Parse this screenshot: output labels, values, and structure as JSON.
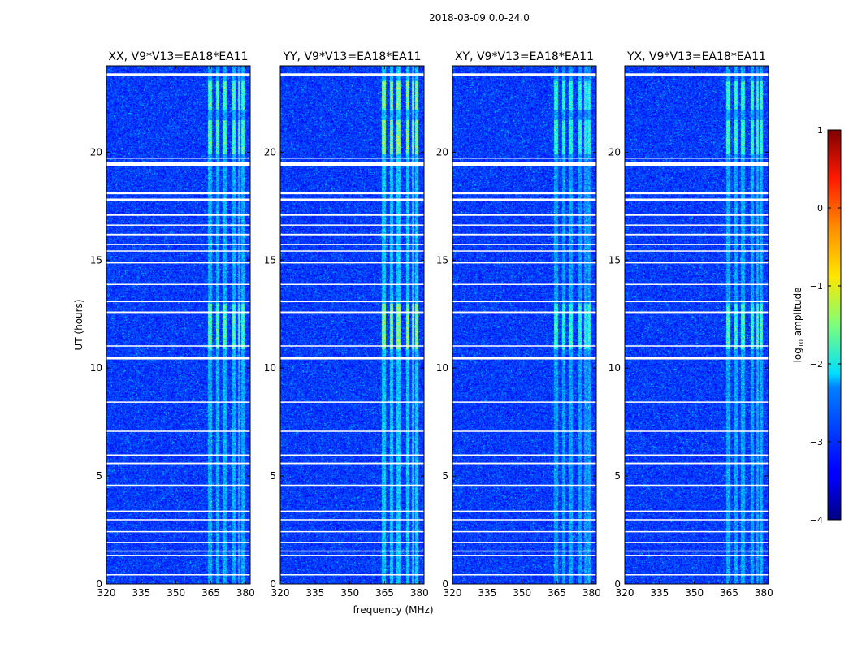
{
  "chart_data": {
    "type": "heatmap",
    "suptitle": "2018-03-09 0.0-24.0",
    "xlabel": "frequency (MHz)",
    "ylabel": "UT (hours)",
    "xlim": [
      320,
      382
    ],
    "ylim": [
      0,
      24
    ],
    "x_ticks": [
      320,
      335,
      350,
      365,
      380
    ],
    "y_ticks": [
      0,
      5,
      10,
      15,
      20
    ],
    "panels": [
      {
        "title": "XX, V9*V13=EA18*EA11",
        "rfi_strength": 0.8
      },
      {
        "title": "YY, V9*V13=EA18*EA11",
        "rfi_strength": 1.0
      },
      {
        "title": "XY, V9*V13=EA18*EA11",
        "rfi_strength": 0.7
      },
      {
        "title": "YX, V9*V13=EA18*EA11",
        "rfi_strength": 0.75
      }
    ],
    "colorbar": {
      "label": "log10 amplitude",
      "label_main": "log",
      "label_sub": "10",
      "label_rest": " amplitude",
      "min": -4,
      "max": 1,
      "ticks": [
        1,
        0,
        -1,
        -2,
        -3,
        -4
      ],
      "tick_labels": [
        "1",
        "0",
        "−1",
        "−2",
        "−3",
        "−4"
      ]
    },
    "flagged_hours": [
      [
        23.55,
        23.65
      ],
      [
        19.7,
        19.75
      ],
      [
        19.35,
        19.55
      ],
      [
        18.05,
        18.15
      ],
      [
        17.75,
        17.85
      ],
      [
        17.05,
        17.12
      ],
      [
        16.6,
        16.65
      ],
      [
        16.15,
        16.22
      ],
      [
        15.7,
        15.75
      ],
      [
        15.4,
        15.45
      ],
      [
        14.85,
        14.9
      ],
      [
        13.85,
        13.9
      ],
      [
        13.05,
        13.12
      ],
      [
        12.55,
        12.62
      ],
      [
        11.0,
        11.05
      ],
      [
        10.4,
        10.5
      ],
      [
        8.4,
        8.45
      ],
      [
        7.05,
        7.1
      ],
      [
        5.95,
        6.0
      ],
      [
        5.55,
        5.62
      ],
      [
        4.55,
        4.6
      ],
      [
        3.35,
        3.4
      ],
      [
        2.95,
        3.0
      ],
      [
        2.4,
        2.45
      ],
      [
        1.9,
        1.95
      ],
      [
        1.5,
        1.55
      ],
      [
        1.3,
        1.35
      ],
      [
        0.4,
        0.45
      ]
    ],
    "rfi_channels_mhz": [
      [
        363.5,
        365.5
      ],
      [
        367,
        368.5
      ],
      [
        370,
        371.5
      ],
      [
        374,
        375.5
      ],
      [
        376.5,
        377.5
      ],
      [
        378,
        379.5
      ]
    ],
    "strong_rfi_hours": [
      [
        10.9,
        13.0
      ],
      [
        19.9,
        21.5
      ],
      [
        22.0,
        23.3
      ]
    ]
  }
}
